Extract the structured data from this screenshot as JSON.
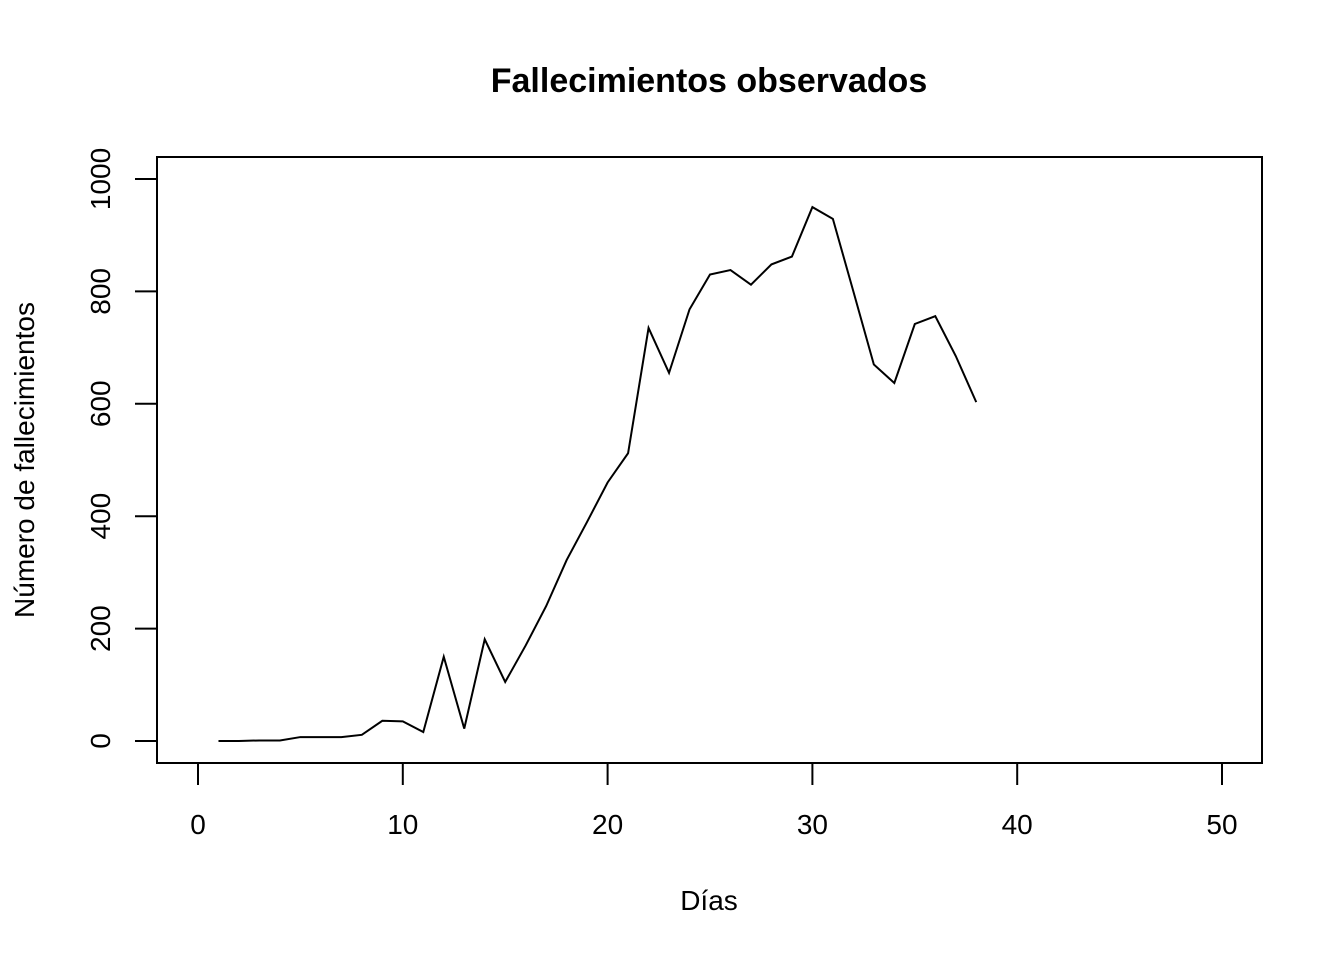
{
  "chart_data": {
    "type": "line",
    "title": "Fallecimientos observados",
    "xlabel": "Días",
    "ylabel": "Número de fallecimientos",
    "xlim": [
      0,
      50
    ],
    "ylim": [
      0,
      1000
    ],
    "xticks": [
      0,
      10,
      20,
      30,
      40,
      50
    ],
    "yticks": [
      0,
      200,
      400,
      600,
      800,
      1000
    ],
    "xtick_labels": [
      "0",
      "10",
      "20",
      "30",
      "40",
      "50"
    ],
    "ytick_labels": [
      "0",
      "200",
      "400",
      "600",
      "800",
      "1000"
    ],
    "grid": false,
    "line_color": "#000000",
    "x": [
      1,
      2,
      3,
      4,
      5,
      6,
      7,
      8,
      9,
      10,
      11,
      12,
      13,
      14,
      15,
      16,
      17,
      18,
      19,
      20,
      21,
      22,
      23,
      24,
      25,
      26,
      27,
      28,
      29,
      30,
      31,
      32,
      33,
      34,
      35,
      36,
      37,
      38
    ],
    "y": [
      0,
      0,
      1,
      1,
      7,
      7,
      7,
      11,
      36,
      35,
      16,
      150,
      22,
      181,
      105,
      170,
      240,
      322,
      390,
      460,
      512,
      735,
      655,
      768,
      830,
      838,
      812,
      848,
      862,
      950,
      929,
      800,
      670,
      637,
      742,
      756,
      685,
      603
    ]
  }
}
